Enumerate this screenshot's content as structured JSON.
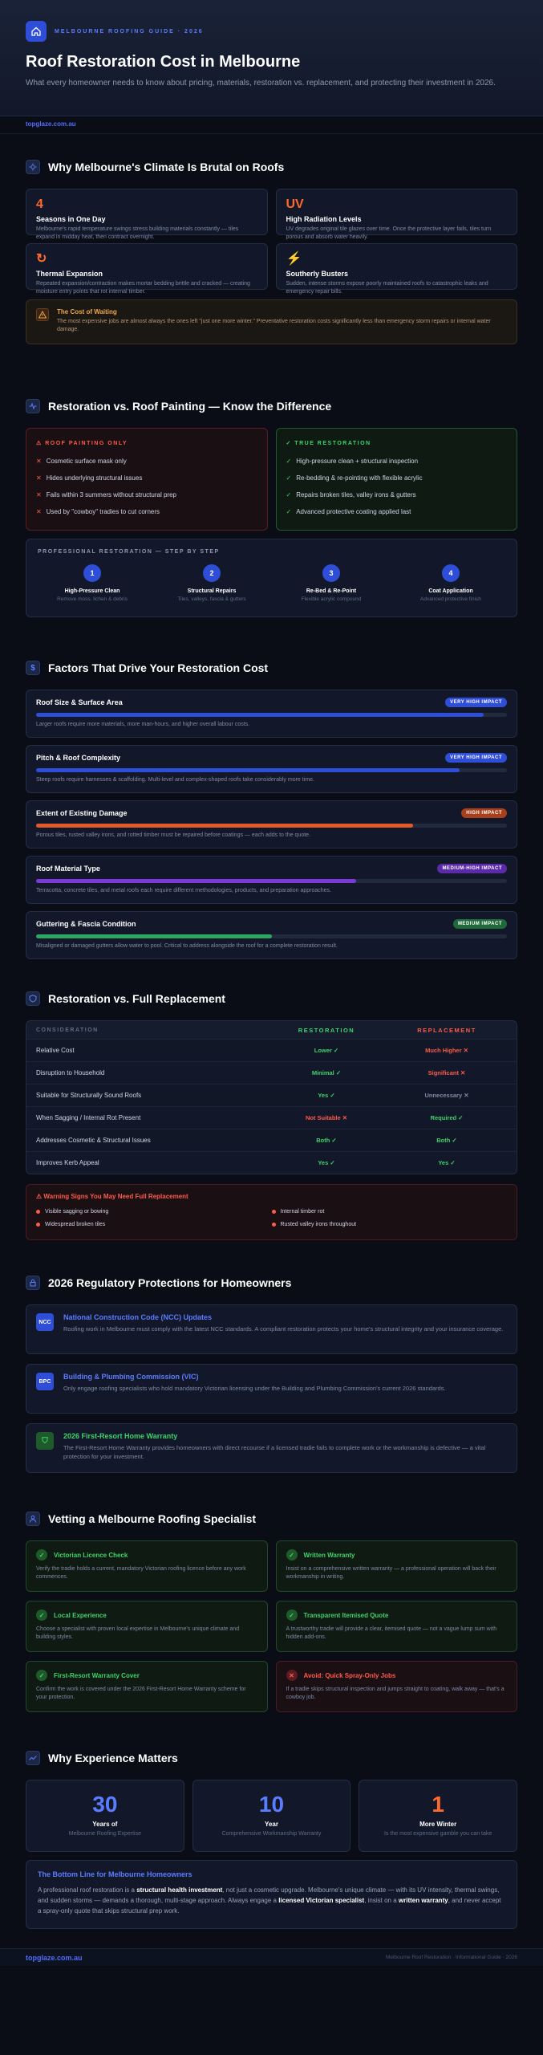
{
  "hero": {
    "eyebrow": "MELBOURNE ROOFING GUIDE · 2026",
    "title": "Roof Restoration Cost in Melbourne",
    "subtitle": "What every homeowner needs to know about pricing, materials, restoration vs. replacement, and protecting their investment in 2026."
  },
  "domain": "topglaze.com.au",
  "climate": {
    "title": "Why Melbourne's Climate Is Brutal on Roofs",
    "cards": [
      {
        "big": "4",
        "title": "Seasons in One Day",
        "text": "Melbourne's rapid temperature swings stress building materials constantly — tiles expand in midday heat, then contract overnight."
      },
      {
        "big": "UV",
        "title": "High Radiation Levels",
        "text": "UV degrades original tile glazes over time. Once the protective layer fails, tiles turn porous and absorb water heavily."
      },
      {
        "big": "↻",
        "title": "Thermal Expansion",
        "text": "Repeated expansion/contraction makes mortar bedding brittle and cracked — creating moisture entry points that rot internal timber."
      },
      {
        "big": "⚡",
        "title": "Southerly Busters",
        "text": "Sudden, intense storms expose poorly maintained roofs to catastrophic leaks and emergency repair bills."
      }
    ],
    "warn_title": "The Cost of Waiting",
    "warn_text": "The most expensive jobs are almost always the ones left \"just one more winter.\" Preventative restoration costs significantly less than emergency storm repairs or internal water damage."
  },
  "versus": {
    "title": "Restoration vs. Roof Painting — Know the Difference",
    "bad_title": "⚠ ROOF PAINTING ONLY",
    "bad": [
      "Cosmetic surface mask only",
      "Hides underlying structural issues",
      "Fails within 3 summers without structural prep",
      "Used by \"cowboy\" tradies to cut corners"
    ],
    "good_title": "✓ TRUE RESTORATION",
    "good": [
      "High-pressure clean + structural inspection",
      "Re-bedding & re-pointing with flexible acrylic",
      "Repairs broken tiles, valley irons & gutters",
      "Advanced protective coating applied last"
    ],
    "steps_title": "PROFESSIONAL RESTORATION — STEP BY STEP",
    "steps": [
      {
        "n": "1",
        "t": "High-Pressure Clean",
        "d": "Remove moss, lichen & debris"
      },
      {
        "n": "2",
        "t": "Structural Repairs",
        "d": "Tiles, valleys, fascia & gutters"
      },
      {
        "n": "3",
        "t": "Re-Bed & Re-Point",
        "d": "Flexible acrylic compound"
      },
      {
        "n": "4",
        "t": "Coat Application",
        "d": "Advanced protective finish"
      }
    ]
  },
  "factors": {
    "title": "Factors That Drive Your Restoration Cost",
    "items": [
      {
        "t": "Roof Size & Surface Area",
        "b": "VERY HIGH IMPACT",
        "p": "Larger roofs require more materials, more man-hours, and higher overall labour costs.",
        "v": 0.95,
        "c": "#2f4ed8",
        "bc": "#2f4ed8"
      },
      {
        "t": "Pitch & Roof Complexity",
        "b": "VERY HIGH IMPACT",
        "p": "Steep roofs require harnesses & scaffolding. Multi-level and complex-shaped roofs take considerably more time.",
        "v": 0.9,
        "c": "#2f4ed8",
        "bc": "#2f4ed8"
      },
      {
        "t": "Extent of Existing Damage",
        "b": "HIGH IMPACT",
        "p": "Porous tiles, rusted valley irons, and rotted timber must be repaired before coatings — each adds to the quote.",
        "v": 0.8,
        "c": "#e0592a",
        "bc": "#a8401c"
      },
      {
        "t": "Roof Material Type",
        "b": "MEDIUM-HIGH IMPACT",
        "p": "Terracotta, concrete tiles, and metal roofs each require different methodologies, products, and preparation approaches.",
        "v": 0.68,
        "c": "#7a3ad8",
        "bc": "#5a2aa8"
      },
      {
        "t": "Guttering & Fascia Condition",
        "b": "MEDIUM IMPACT",
        "p": "Misaligned or damaged gutters allow water to pool. Critical to address alongside the roof for a complete restoration result.",
        "v": 0.5,
        "c": "#2aa860",
        "bc": "#1f6a3a"
      }
    ]
  },
  "replace": {
    "title": "Restoration vs. Full Replacement",
    "head": [
      "CONSIDERATION",
      "RESTORATION",
      "REPLACEMENT"
    ],
    "rows": [
      [
        "Relative Cost",
        "Lower ✓",
        "Much Higher ✕"
      ],
      [
        "Disruption to Household",
        "Minimal ✓",
        "Significant ✕"
      ],
      [
        "Suitable for Structurally Sound Roofs",
        "Yes ✓",
        "Unnecessary ✕"
      ],
      [
        "When Sagging / Internal Rot Present",
        "Not Suitable ✕",
        "Required ✓"
      ],
      [
        "Addresses Cosmetic & Structural Issues",
        "Both ✓",
        "Both ✓"
      ],
      [
        "Improves Kerb Appeal",
        "Yes ✓",
        "Yes ✓"
      ]
    ],
    "signs_title": "⚠ Warning Signs You May Need Full Replacement",
    "signs": [
      "Visible sagging or bowing",
      "Internal timber rot",
      "Widespread broken tiles",
      "Rusted valley irons throughout"
    ]
  },
  "regs": {
    "title": "2026 Regulatory Protections for Homeowners",
    "items": [
      {
        "i": "NCC",
        "t": "National Construction Code (NCC) Updates",
        "p": "Roofing work in Melbourne must comply with the latest NCC standards. A compliant restoration protects your home's structural integrity and your insurance coverage."
      },
      {
        "i": "BPC",
        "t": "Building & Plumbing Commission (VIC)",
        "p": "Only engage roofing specialists who hold mandatory Victorian licensing under the Building and Plumbing Commission's current 2026 standards."
      },
      {
        "i": "⛉",
        "t": "2026 First-Resort Home Warranty",
        "p": "The First-Resort Home Warranty provides homeowners with direct recourse if a licensed tradie fails to complete work or the workmanship is defective — a vital protection for your investment."
      }
    ]
  },
  "vetting": {
    "title": "Vetting a Melbourne Roofing Specialist",
    "items": [
      {
        "t": "Victorian Licence Check",
        "p": "Verify the tradie holds a current, mandatory Victorian roofing licence before any work commences.",
        "ok": true
      },
      {
        "t": "Written Warranty",
        "p": "Insist on a comprehensive written warranty — a professional operation will back their workmanship in writing.",
        "ok": true
      },
      {
        "t": "Local Experience",
        "p": "Choose a specialist with proven local expertise in Melbourne's unique climate and building styles.",
        "ok": true
      },
      {
        "t": "Transparent Itemised Quote",
        "p": "A trustworthy tradie will provide a clear, itemised quote — not a vague lump sum with hidden add-ons.",
        "ok": true
      },
      {
        "t": "First-Resort Warranty Cover",
        "p": "Confirm the work is covered under the 2026 First-Resort Home Warranty scheme for your protection.",
        "ok": true
      },
      {
        "t": "Avoid: Quick Spray-Only Jobs",
        "p": "If a tradie skips structural inspection and jumps straight to coating, walk away — that's a cowboy job.",
        "ok": false
      }
    ]
  },
  "experience": {
    "title": "Why Experience Matters",
    "stats": [
      {
        "n": "30",
        "t": "Years of",
        "d": "Melbourne Roofing Expertise",
        "c": "#5c7cff"
      },
      {
        "n": "10",
        "t": "Year",
        "d": "Comprehensive Workmanship Warranty",
        "c": "#5c7cff"
      },
      {
        "n": "1",
        "t": "More Winter",
        "d": "Is the most expensive gamble you can take",
        "c": "#ff6a2c"
      }
    ],
    "bottom_title": "The Bottom Line for Melbourne Homeowners"
  },
  "footer": {
    "left": "topglaze.com.au",
    "right": "Melbourne Roof Restoration · Informational Guide · 2026"
  }
}
